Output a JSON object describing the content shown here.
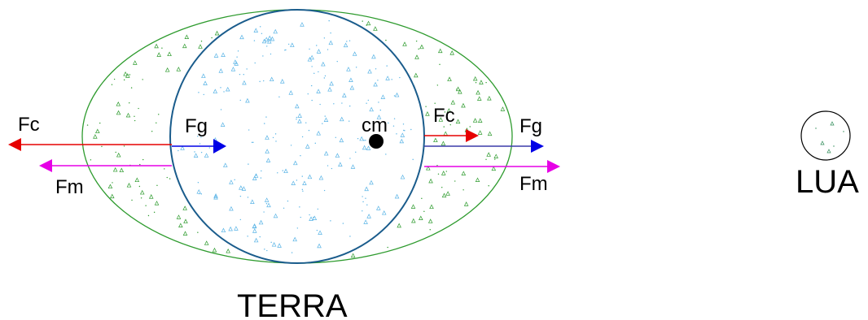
{
  "labels": {
    "earth": "TERRA",
    "moon": "LUA",
    "center_of_mass": "cm",
    "fc_left": "Fc",
    "fg_left": "Fg",
    "fm_left": "Fm",
    "fc_right": "Fc",
    "fg_right": "Fg",
    "fm_right": "Fm"
  },
  "colors": {
    "ocean_bulge": "#2e9b2e",
    "earth_outline": "#1a5c8c",
    "earth_texture": "#5ab4e6",
    "bulge_texture": "#2e9b2e",
    "moon_outline": "#000000",
    "fc_arrow": "#e60000",
    "fg_arrow": "#0000e6",
    "fm_arrow": "#e600e6",
    "cm_dot": "#000000"
  },
  "icons": {
    "arrowhead": "triangle-arrowhead",
    "center_of_mass": "filled-circle"
  }
}
